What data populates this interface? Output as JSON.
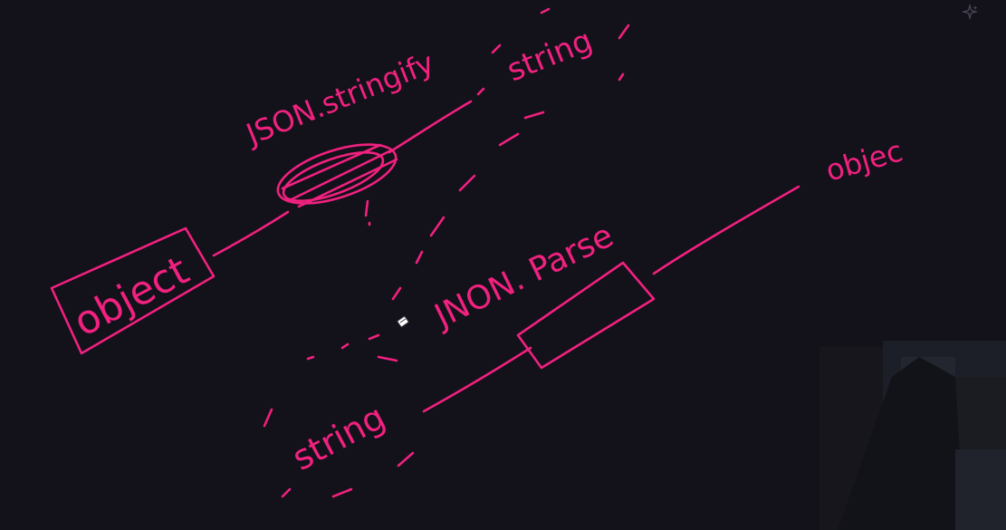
{
  "whiteboard": {
    "ink_color": "#f0217f",
    "labels": {
      "object_left": "object",
      "stringify": "JSON.stringify",
      "string_top": "string",
      "parse": "JNON. Parse",
      "string_bottom": "string",
      "object_right": "objec",
      "exclamation": "!"
    }
  },
  "icons": {
    "sparkle": "sparkle-icon",
    "cursor": "eraser-cursor-icon"
  }
}
